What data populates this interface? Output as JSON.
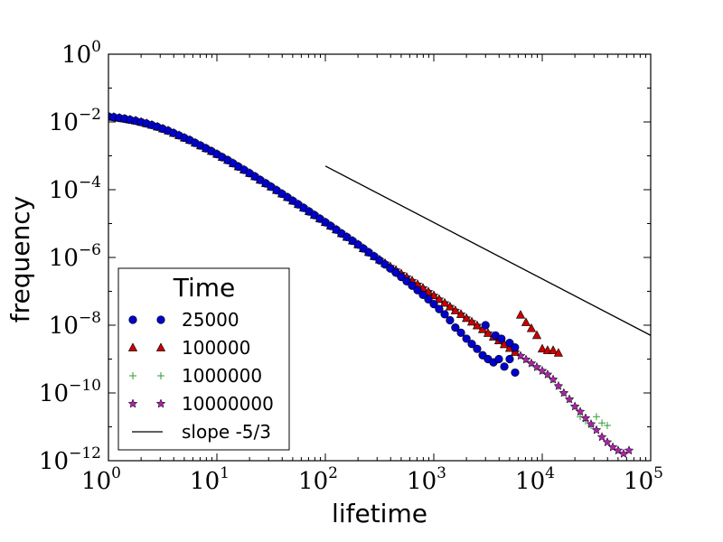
{
  "chart_data": {
    "type": "scatter",
    "xscale": "log",
    "yscale": "log",
    "xlabel": "lifetime",
    "ylabel": "frequency",
    "xlim": [
      1,
      100000
    ],
    "ylim": [
      1e-12,
      1
    ],
    "x_tick_labels": [
      {
        "value": 1,
        "base": "10",
        "exp": "0"
      },
      {
        "value": 10,
        "base": "10",
        "exp": "1"
      },
      {
        "value": 100,
        "base": "10",
        "exp": "2"
      },
      {
        "value": 1000,
        "base": "10",
        "exp": "3"
      },
      {
        "value": 10000,
        "base": "10",
        "exp": "4"
      },
      {
        "value": 100000,
        "base": "10",
        "exp": "5"
      }
    ],
    "y_tick_labels": [
      {
        "value": 1,
        "base": "10",
        "exp": "0"
      },
      {
        "value": 0.01,
        "base": "10",
        "exp": "−2"
      },
      {
        "value": 0.0001,
        "base": "10",
        "exp": "−4"
      },
      {
        "value": 1e-06,
        "base": "10",
        "exp": "−6"
      },
      {
        "value": 1e-08,
        "base": "10",
        "exp": "−8"
      },
      {
        "value": 1e-10,
        "base": "10",
        "exp": "−10"
      },
      {
        "value": 1e-12,
        "base": "10",
        "exp": "−12"
      }
    ],
    "legend": {
      "title": "Time",
      "location": "lower-left"
    },
    "series": [
      {
        "name": "25000",
        "marker": "circle",
        "color": "#0000cc",
        "stroke": "#000000",
        "x": [
          1,
          1.12,
          1.26,
          1.41,
          1.58,
          1.78,
          2,
          2.24,
          2.51,
          2.82,
          3.16,
          3.55,
          3.98,
          4.47,
          5.01,
          5.62,
          6.31,
          7.08,
          7.94,
          8.91,
          10,
          11.2,
          12.6,
          14.1,
          15.8,
          17.8,
          20,
          22.4,
          25.1,
          28.2,
          31.6,
          35.5,
          39.8,
          44.7,
          50.1,
          56.2,
          63.1,
          70.8,
          79.4,
          89.1,
          100,
          112,
          126,
          141,
          158,
          178,
          200,
          224,
          251,
          282,
          316,
          355,
          398,
          447,
          501,
          562,
          631,
          708,
          794,
          891,
          1000,
          1120,
          1260,
          1410,
          1580,
          1780,
          2000,
          2240,
          2510,
          2820,
          3160,
          3550,
          3980,
          4470,
          5010,
          5620
        ],
        "y": [
          0.0145,
          0.0138,
          0.0131,
          0.0124,
          0.0116,
          0.0108,
          0.0099,
          0.009,
          0.0081,
          0.0072,
          0.0063,
          0.0055,
          0.0047,
          0.004,
          0.0034,
          0.0029,
          0.0024,
          0.002,
          0.00166,
          0.00137,
          0.00112,
          0.00091,
          0.00074,
          0.0006,
          0.00048,
          0.000385,
          0.000307,
          0.000245,
          0.000194,
          0.000154,
          0.000122,
          9.62e-05,
          7.59e-05,
          5.98e-05,
          4.7e-05,
          3.69e-05,
          2.9e-05,
          2.27e-05,
          1.78e-05,
          1.39e-05,
          1.09e-05,
          8.5e-06,
          6.6e-06,
          5.1e-06,
          4e-06,
          3.1e-06,
          2.4e-06,
          1.84e-06,
          1.41e-06,
          1.08e-06,
          8.2e-07,
          6.2e-07,
          4.7e-07,
          3.55e-07,
          2.65e-07,
          1.98e-07,
          1.47e-07,
          1.08e-07,
          7.9e-08,
          5.8e-08,
          4.2e-08,
          3e-08,
          2.1e-08,
          1.4e-08,
          8.5e-09,
          6e-09,
          4e-09,
          2.8e-09,
          2e-09,
          1.3e-09,
          1e-09,
          8e-10,
          1e-09,
          6e-10,
          1e-09,
          4e-10
        ],
        "x_extra": [
          3000,
          3700,
          4200,
          5000,
          5600
        ],
        "y_extra": [
          1e-08,
          5e-09,
          4e-09,
          3e-09,
          2.2e-09
        ]
      },
      {
        "name": "100000",
        "marker": "triangle",
        "color": "#cc0000",
        "stroke": "#000000",
        "x": [
          1,
          1.12,
          1.26,
          1.41,
          1.58,
          1.78,
          2,
          2.24,
          2.51,
          2.82,
          3.16,
          3.55,
          3.98,
          4.47,
          5.01,
          5.62,
          6.31,
          7.08,
          7.94,
          8.91,
          10,
          11.2,
          12.6,
          14.1,
          15.8,
          17.8,
          20,
          22.4,
          25.1,
          28.2,
          31.6,
          35.5,
          39.8,
          44.7,
          50.1,
          56.2,
          63.1,
          70.8,
          79.4,
          89.1,
          100,
          112,
          126,
          141,
          158,
          178,
          200,
          224,
          251,
          282,
          316,
          355,
          398,
          447,
          501,
          562,
          631,
          708,
          794,
          891,
          1000,
          1120,
          1260,
          1410,
          1580,
          1780,
          2000,
          2240,
          2510,
          2820,
          3160,
          3550,
          3980,
          4470,
          5010,
          5620,
          6310,
          7080,
          7940,
          8910,
          10000,
          11200,
          12600,
          14100
        ],
        "y": [
          0.0145,
          0.0138,
          0.0131,
          0.0124,
          0.0116,
          0.0108,
          0.0099,
          0.009,
          0.0081,
          0.0072,
          0.0063,
          0.0055,
          0.0047,
          0.004,
          0.0034,
          0.0029,
          0.0024,
          0.002,
          0.00166,
          0.00137,
          0.00112,
          0.00091,
          0.00074,
          0.0006,
          0.00048,
          0.000385,
          0.000307,
          0.000245,
          0.000194,
          0.000154,
          0.000122,
          9.62e-05,
          7.59e-05,
          5.98e-05,
          4.7e-05,
          3.69e-05,
          2.9e-05,
          2.27e-05,
          1.78e-05,
          1.39e-05,
          1.09e-05,
          8.5e-06,
          6.6e-06,
          5.1e-06,
          4e-06,
          3.1e-06,
          2.4e-06,
          1.84e-06,
          1.41e-06,
          1.08e-06,
          8.5e-07,
          6.7e-07,
          5.3e-07,
          4.2e-07,
          3.3e-07,
          2.6e-07,
          2.05e-07,
          1.6e-07,
          1.25e-07,
          9.7e-08,
          7.5e-08,
          5.8e-08,
          4.5e-08,
          3.5e-08,
          2.7e-08,
          2.1e-08,
          1.6e-08,
          1.25e-08,
          9.7e-09,
          7.5e-09,
          5.8e-09,
          4.5e-09,
          3.5e-09,
          2.7e-09,
          2.1e-09,
          1.6e-09,
          2e-08,
          1.2e-08,
          8e-09,
          5e-09,
          2e-09,
          1.8e-09,
          1.8e-09,
          1.5e-09
        ]
      },
      {
        "name": "1000000",
        "marker": "plus",
        "color": "#339933",
        "stroke": "#339933",
        "x": [
          1,
          1.12,
          1.26,
          1.41,
          1.58,
          1.78,
          2,
          2.24,
          2.51,
          2.82,
          3.16,
          3.55,
          3.98,
          4.47,
          5.01,
          5.62,
          6.31,
          7.08,
          7.94,
          8.91,
          10,
          11.2,
          12.6,
          14.1,
          15.8,
          17.8,
          20,
          22.4,
          25.1,
          28.2,
          31.6,
          35.5,
          39.8,
          44.7,
          50.1,
          56.2,
          63.1,
          70.8,
          79.4,
          89.1,
          100,
          112,
          126,
          141,
          158,
          178,
          200,
          224,
          251,
          282,
          316,
          355,
          398,
          447,
          501,
          562,
          631,
          708,
          794,
          891,
          1000,
          1120,
          1260,
          1410,
          1580,
          1780,
          2000,
          2240,
          2510,
          2820,
          3160,
          3550,
          3980,
          4470,
          5010,
          5620,
          6310,
          7080,
          7940,
          8910,
          10000,
          11200,
          12600,
          14100,
          15800,
          17800,
          20000,
          22400,
          25100,
          28200,
          31600,
          35500,
          39800
        ],
        "y": [
          0.0145,
          0.0138,
          0.0131,
          0.0124,
          0.0116,
          0.0108,
          0.0099,
          0.009,
          0.0081,
          0.0072,
          0.0063,
          0.0055,
          0.0047,
          0.004,
          0.0034,
          0.0029,
          0.0024,
          0.002,
          0.00166,
          0.00137,
          0.00112,
          0.00091,
          0.00074,
          0.0006,
          0.00048,
          0.000385,
          0.000307,
          0.000245,
          0.000194,
          0.000154,
          0.000122,
          9.62e-05,
          7.59e-05,
          5.98e-05,
          4.7e-05,
          3.69e-05,
          2.9e-05,
          2.27e-05,
          1.78e-05,
          1.39e-05,
          1.09e-05,
          8.5e-06,
          6.6e-06,
          5.1e-06,
          4e-06,
          3.1e-06,
          2.4e-06,
          1.84e-06,
          1.41e-06,
          1.08e-06,
          8.5e-07,
          6.7e-07,
          5.3e-07,
          4.2e-07,
          3.3e-07,
          2.6e-07,
          2.05e-07,
          1.6e-07,
          1.25e-07,
          9.7e-08,
          7.5e-08,
          5.8e-08,
          4.5e-08,
          3.5e-08,
          2.7e-08,
          2.1e-08,
          1.6e-08,
          1.25e-08,
          9.7e-09,
          7.5e-09,
          5.8e-09,
          4.5e-09,
          3.5e-09,
          2.7e-09,
          2.1e-09,
          1.6e-09,
          1.25e-09,
          9.7e-10,
          7.5e-10,
          5.8e-10,
          4.5e-10,
          3.5e-10,
          2.5e-10,
          1.6e-10,
          1e-10,
          6.5e-11,
          4e-11,
          2e-11,
          1.5e-11,
          1.1e-11,
          2e-11,
          1.3e-11,
          1.1e-11
        ]
      },
      {
        "name": "10000000",
        "marker": "star",
        "color": "#aa22aa",
        "stroke": "#000000",
        "x": [
          1,
          1.12,
          1.26,
          1.41,
          1.58,
          1.78,
          2,
          2.24,
          2.51,
          2.82,
          3.16,
          3.55,
          3.98,
          4.47,
          5.01,
          5.62,
          6.31,
          7.08,
          7.94,
          8.91,
          10,
          11.2,
          12.6,
          14.1,
          15.8,
          17.8,
          20,
          22.4,
          25.1,
          28.2,
          31.6,
          35.5,
          39.8,
          44.7,
          50.1,
          56.2,
          63.1,
          70.8,
          79.4,
          89.1,
          100,
          112,
          126,
          141,
          158,
          178,
          200,
          224,
          251,
          282,
          316,
          355,
          398,
          447,
          501,
          562,
          631,
          708,
          794,
          891,
          1000,
          1120,
          1260,
          1410,
          1580,
          1780,
          2000,
          2240,
          2510,
          2820,
          3160,
          3550,
          3980,
          4470,
          5010,
          5620,
          6310,
          7080,
          7940,
          8910,
          10000,
          11200,
          12600,
          14100,
          15800,
          17800,
          20000,
          22400,
          25100,
          28200,
          31600,
          35500,
          39800,
          44700,
          50100,
          56200,
          63100
        ],
        "y": [
          0.0145,
          0.0138,
          0.0131,
          0.0124,
          0.0116,
          0.0108,
          0.0099,
          0.009,
          0.0081,
          0.0072,
          0.0063,
          0.0055,
          0.0047,
          0.004,
          0.0034,
          0.0029,
          0.0024,
          0.002,
          0.00166,
          0.00137,
          0.00112,
          0.00091,
          0.00074,
          0.0006,
          0.00048,
          0.000385,
          0.000307,
          0.000245,
          0.000194,
          0.000154,
          0.000122,
          9.62e-05,
          7.59e-05,
          5.98e-05,
          4.7e-05,
          3.69e-05,
          2.9e-05,
          2.27e-05,
          1.78e-05,
          1.39e-05,
          1.09e-05,
          8.5e-06,
          6.6e-06,
          5.1e-06,
          4e-06,
          3.1e-06,
          2.4e-06,
          1.84e-06,
          1.41e-06,
          1.08e-06,
          8.5e-07,
          6.7e-07,
          5.3e-07,
          4.2e-07,
          3.3e-07,
          2.6e-07,
          2.05e-07,
          1.6e-07,
          1.25e-07,
          9.7e-08,
          7.5e-08,
          5.8e-08,
          4.5e-08,
          3.5e-08,
          2.7e-08,
          2.1e-08,
          1.6e-08,
          1.25e-08,
          9.7e-09,
          7.5e-09,
          5.8e-09,
          4.5e-09,
          3.5e-09,
          2.7e-09,
          2.1e-09,
          1.6e-09,
          1.25e-09,
          9.7e-10,
          7.5e-10,
          5.8e-10,
          4.5e-10,
          3.5e-10,
          2.5e-10,
          1.6e-10,
          1e-10,
          6.5e-11,
          4e-11,
          2.8e-11,
          1.8e-11,
          1.2e-11,
          8e-12,
          5e-12,
          3.5e-12,
          2.5e-12,
          2e-12,
          1.6e-12,
          2e-12
        ]
      }
    ],
    "reference_line": {
      "name": "slope -5/3",
      "color": "#000000",
      "x": [
        100,
        100000
      ],
      "y": [
        0.0005,
        5e-09
      ]
    }
  }
}
